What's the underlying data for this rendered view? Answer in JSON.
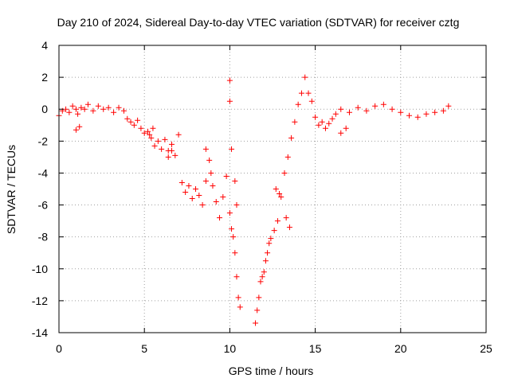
{
  "chart_data": {
    "type": "scatter",
    "title": "Day 210 of 2024, Sidereal Day-to-day VTEC variation (SDTVAR) for receiver cztg",
    "xlabel": "GPS time / hours",
    "ylabel": "SDTVAR / TECUs",
    "xlim": [
      0,
      25
    ],
    "ylim": [
      -14,
      4
    ],
    "xticks": [
      0,
      5,
      10,
      15,
      20,
      25
    ],
    "yticks": [
      -14,
      -12,
      -10,
      -8,
      -6,
      -4,
      -2,
      0,
      2,
      4
    ],
    "grid": true,
    "marker": "+",
    "marker_color": "#ff0000",
    "series": [
      {
        "name": "SDTVAR",
        "x": [
          0.0,
          0.2,
          0.4,
          0.6,
          0.8,
          1.0,
          1.1,
          1.3,
          1.5,
          1.7,
          2.0,
          2.3,
          2.6,
          2.9,
          3.2,
          3.5,
          3.8,
          4.0,
          4.2,
          4.4,
          4.6,
          4.8,
          5.0,
          5.2,
          5.4,
          5.6,
          5.8,
          6.0,
          6.2,
          6.4,
          6.6,
          6.8,
          7.0,
          7.2,
          7.4,
          7.6,
          7.8,
          8.0,
          8.2,
          8.4,
          8.6,
          8.8,
          9.0,
          9.2,
          9.4,
          9.6,
          9.8,
          10.0,
          10.1,
          10.2,
          10.3,
          10.4,
          10.5,
          10.6,
          11.5,
          11.6,
          11.7,
          11.8,
          11.9,
          12.0,
          12.1,
          12.2,
          12.3,
          12.4,
          12.6,
          12.8,
          13.0,
          13.2,
          13.4,
          13.6,
          13.8,
          14.0,
          14.2,
          14.4,
          14.6,
          14.8,
          15.0,
          15.2,
          15.4,
          15.6,
          15.8,
          16.0,
          16.2,
          16.5,
          17.0,
          17.5,
          18.0,
          18.5,
          19.0,
          19.5,
          20.0,
          20.5,
          21.0,
          21.5,
          22.0,
          22.5,
          22.8,
          1.0,
          1.2,
          5.3,
          5.5,
          6.4,
          6.6,
          8.6,
          8.9,
          10.0,
          10.0,
          10.1,
          10.3,
          10.4,
          12.7,
          12.9,
          13.3,
          13.5,
          16.5,
          16.8
        ],
        "y": [
          -0.4,
          -0.1,
          0.0,
          -0.2,
          0.2,
          0.0,
          -0.3,
          0.1,
          0.0,
          0.3,
          -0.1,
          0.2,
          0.0,
          0.1,
          -0.2,
          0.1,
          -0.1,
          -0.6,
          -0.8,
          -1.0,
          -0.7,
          -1.2,
          -1.5,
          -1.4,
          -1.8,
          -2.3,
          -2.0,
          -2.5,
          -1.9,
          -2.6,
          -2.2,
          -2.9,
          -1.6,
          -4.6,
          -5.2,
          -4.8,
          -5.6,
          -5.0,
          -5.4,
          -6.0,
          -4.5,
          -3.2,
          -4.8,
          -5.8,
          -6.8,
          -5.5,
          -4.2,
          -6.5,
          -7.5,
          -8.0,
          -9.0,
          -10.5,
          -11.8,
          -12.4,
          -13.4,
          -12.6,
          -11.8,
          -10.8,
          -10.5,
          -10.2,
          -9.5,
          -9.0,
          -8.4,
          -8.1,
          -7.6,
          -7.0,
          -5.5,
          -4.0,
          -3.0,
          -1.8,
          -0.8,
          0.3,
          1.0,
          2.0,
          1.0,
          0.5,
          -0.5,
          -1.0,
          -0.8,
          -1.2,
          -0.9,
          -0.6,
          -0.3,
          0.0,
          -0.2,
          0.1,
          -0.1,
          0.2,
          0.3,
          0.0,
          -0.2,
          -0.4,
          -0.5,
          -0.3,
          -0.2,
          -0.1,
          0.2,
          -1.3,
          -1.1,
          -1.6,
          -1.2,
          -3.0,
          -2.6,
          -2.5,
          -4.0,
          1.8,
          0.5,
          -2.5,
          -4.5,
          -6.0,
          -5.0,
          -5.3,
          -6.8,
          -7.4,
          -1.5,
          -1.2
        ]
      }
    ]
  }
}
